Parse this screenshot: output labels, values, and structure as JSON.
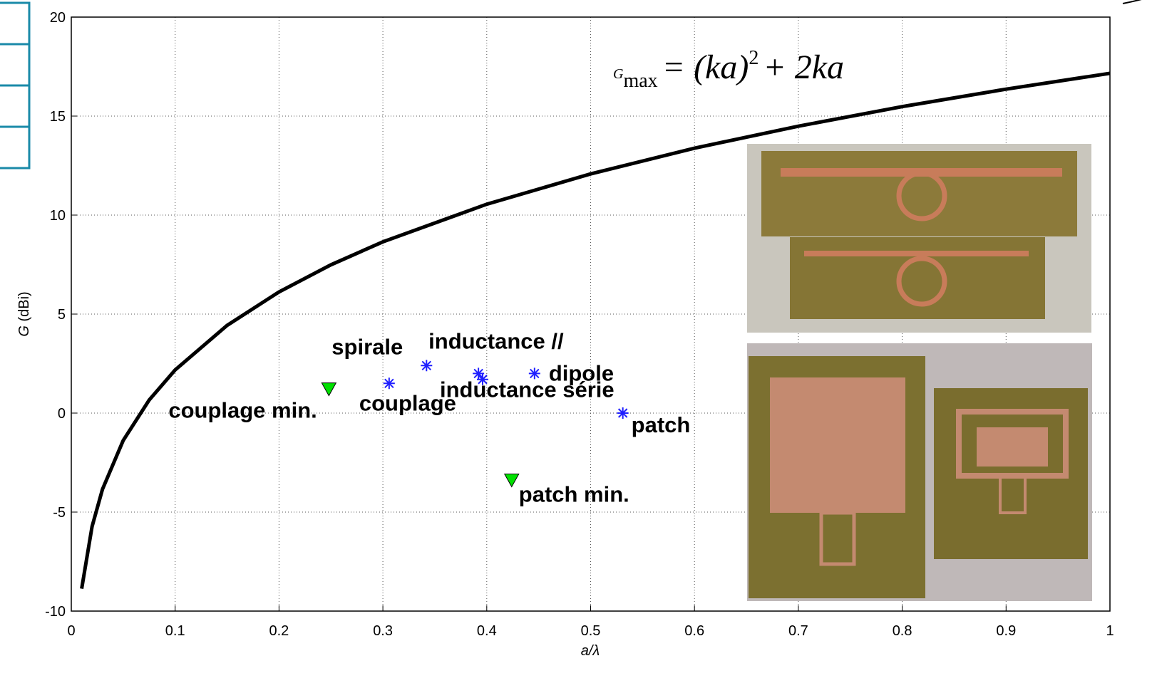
{
  "chart_data": {
    "type": "line",
    "formula": {
      "base": "G",
      "sub": "max",
      "mid": "= (ka)",
      "sup": "2",
      "tail": "+ 2ka"
    },
    "x_label": {
      "italic": "a",
      "rest": "/λ"
    },
    "y_label": {
      "italic": "G",
      "rest": " (dBi)"
    },
    "xlim": [
      0,
      1
    ],
    "xticks": [
      0,
      0.1,
      0.2,
      0.3,
      0.4,
      0.5,
      0.6,
      0.7,
      0.8,
      0.9,
      1
    ],
    "ylim": [
      -10,
      20
    ],
    "yticks": [
      -10,
      -5,
      0,
      5,
      10,
      15,
      20
    ],
    "grid": true,
    "series": [
      {
        "style": "line",
        "color": "#000000",
        "x": [
          0.01,
          0.02,
          0.03,
          0.05,
          0.075,
          0.1,
          0.15,
          0.2,
          0.25,
          0.3,
          0.4,
          0.5,
          0.6,
          0.7,
          0.8,
          0.9,
          1.0
        ],
        "values": [
          -8.87,
          -5.73,
          -3.85,
          -1.38,
          0.66,
          2.18,
          4.43,
          6.12,
          7.49,
          8.65,
          10.55,
          12.08,
          13.38,
          14.49,
          15.48,
          16.36,
          17.16
        ]
      },
      {
        "style": "star",
        "color": "#1f1fff",
        "x": [
          0.342,
          0.306,
          0.392,
          0.396,
          0.446,
          0.531
        ],
        "values": [
          2.4,
          1.5,
          2.0,
          1.7,
          2.0,
          0.0
        ],
        "labels": [
          "spirale",
          "couplage",
          "inductance //",
          "inductance série",
          "dipole",
          "patch"
        ]
      },
      {
        "style": "triangle",
        "color": "#00e000",
        "x": [
          0.248,
          0.424
        ],
        "values": [
          1.2,
          -3.4
        ],
        "labels": [
          "couplage min.",
          "patch min."
        ]
      }
    ]
  }
}
